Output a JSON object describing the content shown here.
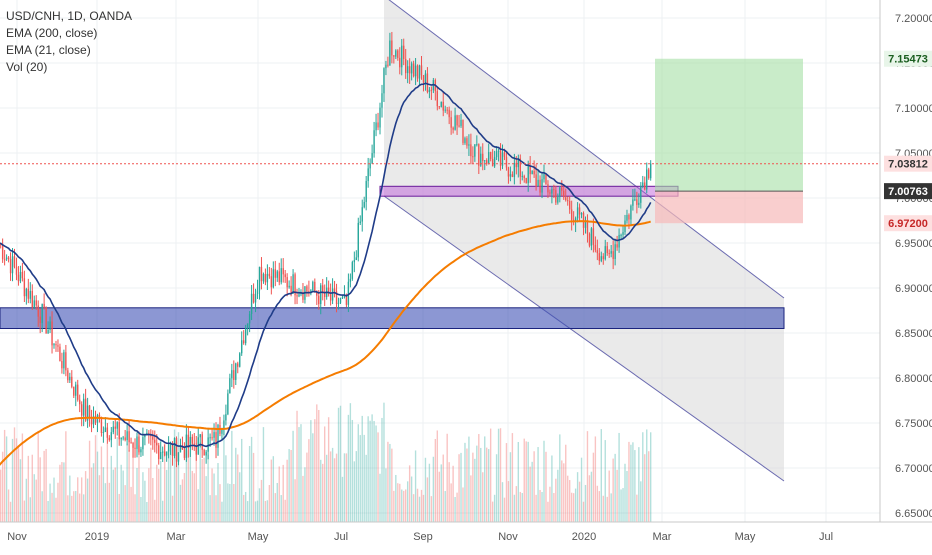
{
  "legend": {
    "symbol": "USD/CNH, 1D, OANDA",
    "ema200": "EMA (200, close)",
    "ema21": "EMA (21, close)",
    "vol": "Vol (20)"
  },
  "price_labels": {
    "target": "7.15473",
    "last": "7.03812",
    "entry": "7.00763",
    "stop": "6.97200"
  },
  "colors": {
    "up": "#26a69a",
    "down": "#ef5350",
    "ema200": "#f57c00",
    "ema21": "#1f3c88",
    "zone": "#3f51b5",
    "purple_zone": "#b84fd6",
    "channel": "#6b6bb0",
    "target_box": "#a5dfa5",
    "stop_box": "#f7b9b9"
  },
  "chart_data": {
    "type": "candlestick",
    "title": "USD/CNH, 1D, OANDA",
    "x_ticks": [
      "Nov",
      "2019",
      "Mar",
      "May",
      "Jul",
      "Sep",
      "Nov",
      "2020",
      "Mar",
      "May",
      "Jul"
    ],
    "y_ticks": [
      "7.20000",
      "7.15000",
      "7.10000",
      "7.05000",
      "7.00000",
      "6.95000",
      "6.90000",
      "6.85000",
      "6.80000",
      "6.75000",
      "6.70000",
      "6.65000"
    ],
    "ylim": [
      6.64,
      7.22
    ],
    "last_price": 7.03812,
    "position": {
      "target": 7.15473,
      "entry": 7.00763,
      "stop": 6.972
    },
    "support_zone": [
      6.855,
      6.878
    ],
    "resistance_zone": [
      7.002,
      7.013
    ],
    "price_path_months": [
      {
        "month": "Nov 2018",
        "close": 6.95
      },
      {
        "month": "Dec 2018",
        "close": 6.87
      },
      {
        "month": "Jan 2019",
        "close": 6.76
      },
      {
        "month": "Feb 2019",
        "close": 6.73
      },
      {
        "month": "Mar 2019",
        "close": 6.72
      },
      {
        "month": "Apr 2019",
        "close": 6.73
      },
      {
        "month": "May 2019",
        "close": 6.92
      },
      {
        "month": "Jun 2019",
        "close": 6.9
      },
      {
        "month": "Jul 2019",
        "close": 6.88
      },
      {
        "month": "Aug 2019",
        "close": 7.17
      },
      {
        "month": "Sep 2019",
        "close": 7.12
      },
      {
        "month": "Oct 2019",
        "close": 7.05
      },
      {
        "month": "Nov 2019",
        "close": 7.03
      },
      {
        "month": "Dec 2019",
        "close": 7.0
      },
      {
        "month": "Jan 2020",
        "close": 6.93
      },
      {
        "month": "Feb 2020",
        "close": 7.02
      }
    ]
  }
}
